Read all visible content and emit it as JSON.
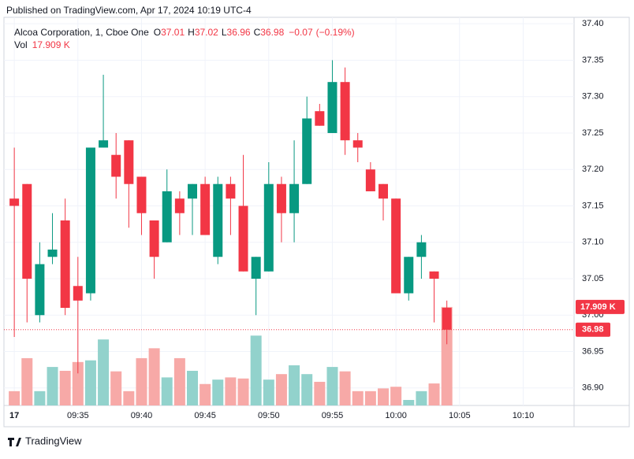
{
  "published": "Published on TradingView.com, Apr 17, 2024 10:19 UTC-4",
  "brand": "TradingView",
  "chart_data": {
    "type": "candlestick",
    "title": "Alcoa Corporation, 1, Cboe One",
    "legend_labels": {
      "open": "O",
      "high": "H",
      "low": "L",
      "close": "C"
    },
    "change": {
      "value": -0.07,
      "label": "−0.07"
    },
    "change_percent": {
      "value": -0.19,
      "label": "(−0.19%)"
    },
    "x": [
      "09:30",
      "09:31",
      "09:32",
      "09:33",
      "09:34",
      "09:35",
      "09:36",
      "09:37",
      "09:38",
      "09:39",
      "09:40",
      "09:41",
      "09:42",
      "09:43",
      "09:44",
      "09:45",
      "09:46",
      "09:47",
      "09:48",
      "09:49",
      "09:50",
      "09:51",
      "09:52",
      "09:53",
      "09:54",
      "09:55",
      "09:56",
      "09:57",
      "09:58",
      "09:59",
      "10:00",
      "10:01",
      "10:02",
      "10:03",
      "10:04"
    ],
    "open": [
      37.16,
      37.18,
      37.0,
      37.08,
      37.13,
      37.04,
      37.03,
      37.23,
      37.22,
      37.24,
      37.19,
      37.13,
      37.1,
      37.16,
      37.16,
      37.18,
      37.08,
      37.18,
      37.15,
      37.05,
      37.06,
      37.18,
      37.14,
      37.18,
      37.28,
      37.25,
      37.32,
      37.24,
      37.2,
      37.18,
      37.16,
      37.03,
      37.08,
      37.06,
      37.01
    ],
    "high": [
      37.23,
      37.18,
      37.1,
      37.14,
      37.16,
      37.08,
      37.23,
      37.33,
      37.25,
      37.24,
      37.19,
      37.13,
      37.2,
      37.17,
      37.18,
      37.19,
      37.19,
      37.19,
      37.22,
      37.08,
      37.21,
      37.19,
      37.24,
      37.3,
      37.29,
      37.35,
      37.34,
      37.25,
      37.21,
      37.18,
      37.16,
      37.08,
      37.11,
      37.06,
      37.02
    ],
    "low": [
      36.97,
      36.99,
      36.99,
      37.07,
      37.0,
      36.92,
      37.02,
      37.23,
      37.16,
      37.12,
      37.11,
      37.05,
      37.1,
      37.11,
      37.11,
      37.11,
      37.07,
      37.11,
      37.06,
      37.0,
      37.06,
      37.1,
      37.1,
      37.18,
      37.26,
      37.25,
      37.22,
      37.21,
      37.17,
      37.13,
      37.03,
      37.02,
      37.05,
      36.99,
      36.96
    ],
    "close": [
      37.15,
      37.05,
      37.07,
      37.09,
      37.01,
      37.02,
      37.23,
      37.24,
      37.19,
      37.18,
      37.14,
      37.08,
      37.17,
      37.14,
      37.18,
      37.11,
      37.18,
      37.16,
      37.06,
      37.08,
      37.18,
      37.14,
      37.18,
      37.27,
      37.26,
      37.32,
      37.24,
      37.23,
      37.17,
      37.16,
      37.03,
      37.08,
      37.1,
      37.05,
      36.98
    ],
    "up_color": "#089981",
    "down_color": "#f23645",
    "volume": {
      "name": "Vol",
      "up_color": "#92d2cc",
      "down_color": "#f7a9a7",
      "values": [
        2600,
        8600,
        2600,
        7000,
        6300,
        7900,
        8200,
        12000,
        6200,
        2600,
        8600,
        10400,
        5100,
        8600,
        6300,
        3900,
        4700,
        5100,
        4900,
        12700,
        4700,
        5700,
        7300,
        5700,
        4300,
        7000,
        6200,
        2600,
        2600,
        3100,
        3400,
        1000,
        2600,
        4000,
        17909
      ],
      "last_label": "17.909 K",
      "vlim": [
        0,
        70000
      ]
    },
    "xlim": [
      "09:29",
      "10:14"
    ],
    "xticks": [
      {
        "value": "09:30",
        "label": "17"
      },
      "09:35",
      "09:40",
      "09:45",
      "09:50",
      "09:55",
      "10:00",
      "10:05",
      "10:10"
    ],
    "ylim": [
      36.876,
      37.411
    ],
    "yticks": [
      {
        "value": 36.9,
        "label": "36.90"
      },
      36.95,
      {
        "value": 37.0,
        "label": "37.00"
      },
      37.05,
      {
        "value": 37.1,
        "label": "37.10"
      },
      37.15,
      {
        "value": 37.2,
        "label": "37.20"
      },
      37.25,
      {
        "value": 37.3,
        "label": "37.30"
      },
      37.35,
      {
        "value": 37.4,
        "label": "37.40"
      }
    ],
    "grid": true
  }
}
